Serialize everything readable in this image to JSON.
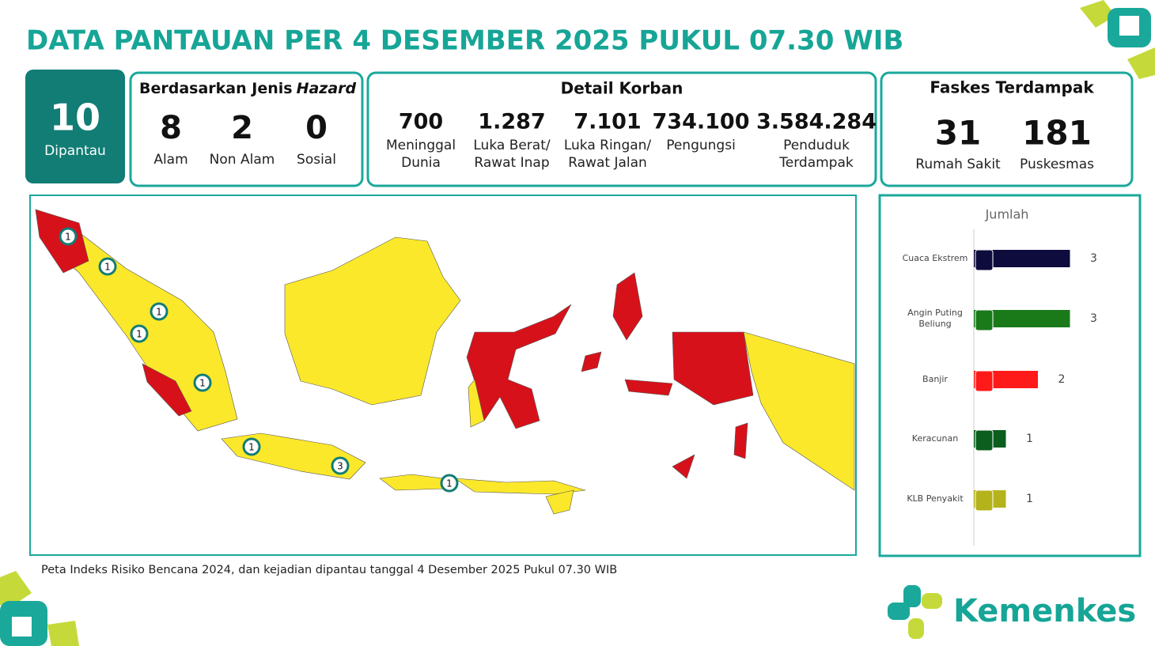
{
  "header": {
    "title": "DATA PANTAUAN PER 4 DESEMBER 2025 PUKUL 07.30 WIB"
  },
  "monitored": {
    "value": "10",
    "label": "Dipantau"
  },
  "hazard": {
    "title": "Berdasarkan Jenis",
    "title_italic": "Hazard",
    "items": [
      {
        "value": "8",
        "label": "Alam"
      },
      {
        "value": "2",
        "label": "Non Alam"
      },
      {
        "value": "0",
        "label": "Sosial"
      }
    ]
  },
  "casualties": {
    "title": "Detail Korban",
    "items": [
      {
        "value": "700",
        "label": [
          "Meninggal",
          "Dunia"
        ]
      },
      {
        "value": "1.287",
        "label": [
          "Luka Berat/",
          "Rawat Inap"
        ]
      },
      {
        "value": "7.101",
        "label": [
          "Luka Ringan/",
          "Rawat Jalan"
        ]
      },
      {
        "value": "734.100",
        "label": [
          "Pengungsi"
        ]
      },
      {
        "value": "3.584.284",
        "label": [
          "Penduduk",
          "Terdampak"
        ]
      }
    ]
  },
  "facilities": {
    "title": "Faskes Terdampak",
    "items": [
      {
        "value": "31",
        "label": "Rumah Sakit"
      },
      {
        "value": "181",
        "label": "Puskesmas"
      }
    ]
  },
  "map": {
    "markers": [
      "1",
      "1",
      "1",
      "1",
      "1",
      "1",
      "3",
      "1"
    ],
    "caption": "Peta Indeks Risiko Bencana 2024, dan kejadian dipantau tanggal 4 Desember 2025 Pukul 07.30  WIB"
  },
  "chart_data": {
    "type": "bar",
    "title": "Jumlah",
    "categories": [
      "Cuaca Ekstrem",
      "Angin Puting Beliung",
      "Banjir",
      "Keracunan",
      "KLB Penyakit"
    ],
    "values": [
      3,
      3,
      2,
      1,
      1
    ],
    "colors": [
      "#0d0c3c",
      "#1a7a1a",
      "#ff1a1a",
      "#0b5e1e",
      "#b5b31b"
    ]
  },
  "brand": "Kemenkes"
}
